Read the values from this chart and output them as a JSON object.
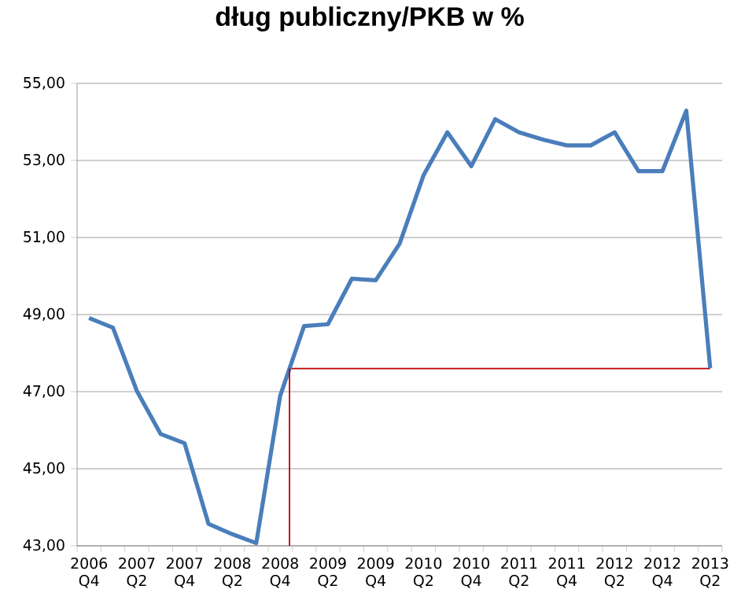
{
  "chart_data": {
    "type": "line",
    "title": "dług publiczny/PKB w %",
    "categories": [
      "2006 Q4",
      null,
      "2007 Q2",
      null,
      "2007 Q4",
      null,
      "2008 Q2",
      null,
      "2008 Q4",
      null,
      "2009 Q2",
      null,
      "2009 Q4",
      null,
      "2010 Q2",
      null,
      "2010 Q4",
      null,
      "2011 Q2",
      null,
      "2011 Q4",
      null,
      "2012 Q2",
      null,
      "2012 Q4",
      null,
      "2013 Q2"
    ],
    "series": [
      {
        "color": "#4a7ebb",
        "values": [
          48.91,
          48.66,
          47.02,
          45.9,
          45.66,
          43.57,
          43.3,
          43.07,
          46.89,
          48.7,
          48.75,
          49.93,
          49.89,
          50.84,
          52.61,
          53.73,
          52.85,
          54.07,
          53.73,
          53.54,
          53.39,
          53.39,
          53.73,
          52.72,
          52.72,
          54.29,
          47.61
        ]
      }
    ],
    "ylim": [
      43,
      55
    ],
    "yticks": [
      {
        "value": 43,
        "label": "43,00"
      },
      {
        "value": 45,
        "label": "45,00"
      },
      {
        "value": 47,
        "label": "47,00"
      },
      {
        "value": 49,
        "label": "49,00"
      },
      {
        "value": 51,
        "label": "51,00"
      },
      {
        "value": 53,
        "label": "53,00"
      },
      {
        "value": 55,
        "label": "55,00"
      }
    ],
    "grid": "y",
    "marker": "none",
    "line_style": "solid",
    "ref_lines": [
      {
        "axis": "y",
        "value": 47.6,
        "color": "#c00000"
      }
    ]
  }
}
